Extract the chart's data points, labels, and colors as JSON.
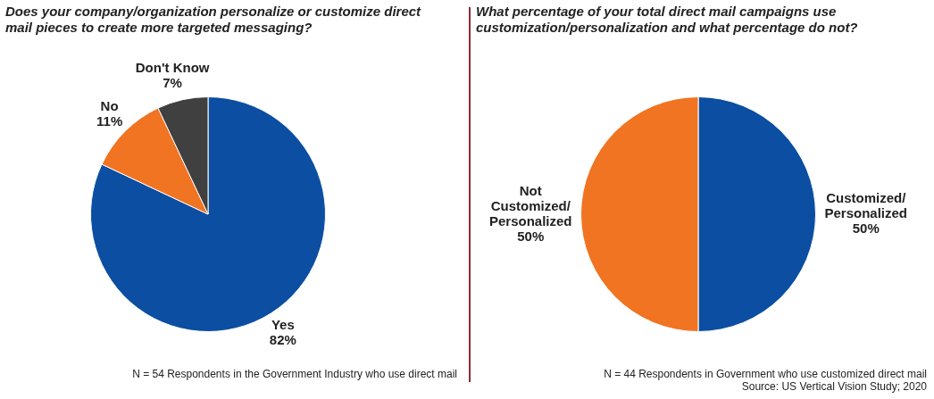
{
  "chart_data": [
    {
      "type": "pie",
      "title": "Does your company/organization personalize or customize direct mail pieces to create more targeted messaging?",
      "categories": [
        "Yes",
        "No",
        "Don't Know"
      ],
      "values": [
        82,
        11,
        7
      ],
      "value_labels": [
        "82%",
        "11%",
        "7%"
      ],
      "colors": [
        "#0b4ea2",
        "#f07422",
        "#404040"
      ],
      "annotations": [
        "N = 54 Respondents in the Government Industry who use direct mail"
      ]
    },
    {
      "type": "pie",
      "title": "What percentage of your total direct mail campaigns use customization/personalization and what percentage do not?",
      "categories": [
        "Customized/ Personalized",
        "Not Customized/ Personalized"
      ],
      "values": [
        50,
        50
      ],
      "value_labels": [
        "50%",
        "50%"
      ],
      "colors": [
        "#0b4ea2",
        "#f07422"
      ],
      "annotations": [
        "N = 44 Respondents in Government who use customized direct mail",
        "Source: US Vertical Vision Study; 2020"
      ]
    }
  ]
}
